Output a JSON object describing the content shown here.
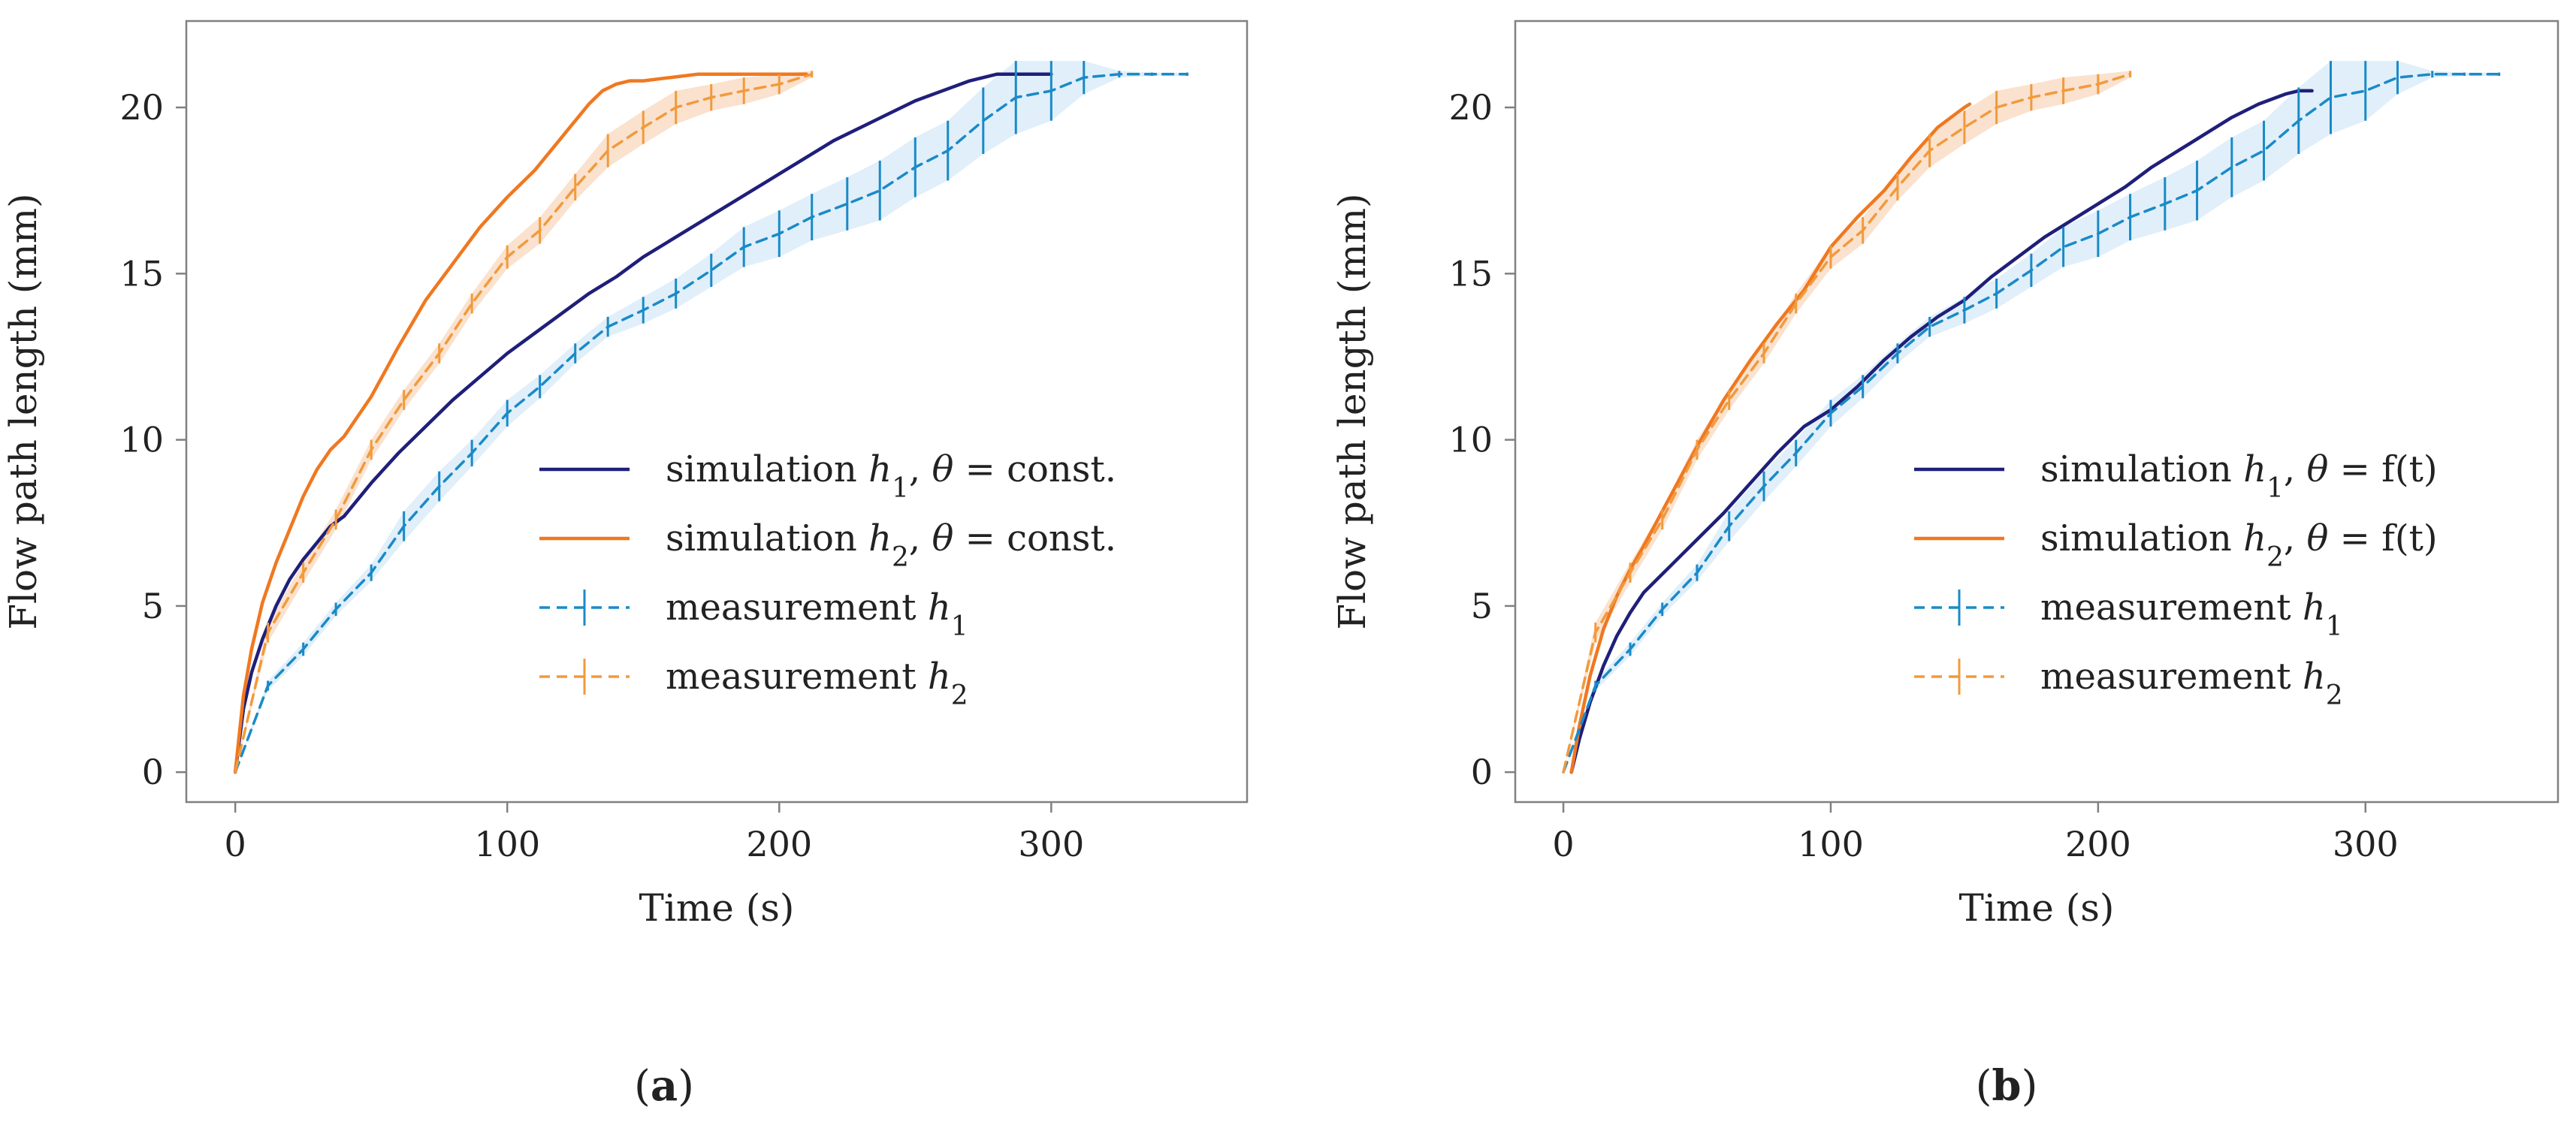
{
  "colors": {
    "sim_h1": "#1f1f7a",
    "sim_h2": "#f07820",
    "meas_h1": "#1a8ac8",
    "meas_h2": "#f29a3c",
    "band_h1": "#d6e9f7",
    "band_h2": "#f8d8bf",
    "axis": "#808080"
  },
  "chart_data": [
    {
      "type": "line",
      "panel_open": "(",
      "panel_letter": "a",
      "panel_close": ")",
      "xlabel": "Time (s)",
      "ylabel": "Flow path length (mm)",
      "xlim": [
        -18,
        372
      ],
      "ylim": [
        -0.9,
        22.6
      ],
      "xticks": [
        0,
        100,
        200,
        300
      ],
      "yticks": [
        0,
        5,
        10,
        15,
        20
      ],
      "legend_position": "right-center",
      "legend": [
        {
          "pre": "simulation ",
          "sym": "h",
          "sub": "1",
          "post": ", ",
          "sym2": "θ",
          "rest": " = const."
        },
        {
          "pre": "simulation ",
          "sym": "h",
          "sub": "2",
          "post": ", ",
          "sym2": "θ",
          "rest": " = const."
        },
        {
          "pre": "measurement ",
          "sym": "h",
          "sub": "1",
          "post": "",
          "sym2": "",
          "rest": ""
        },
        {
          "pre": "measurement ",
          "sym": "h",
          "sub": "2",
          "post": "",
          "sym2": "",
          "rest": ""
        }
      ],
      "series": [
        {
          "style": "sim_h1",
          "x": [
            0,
            3,
            6,
            10,
            15,
            20,
            25,
            30,
            35,
            40,
            50,
            60,
            70,
            80,
            90,
            100,
            110,
            120,
            130,
            140,
            150,
            160,
            170,
            180,
            190,
            200,
            210,
            220,
            230,
            240,
            250,
            260,
            270,
            280,
            290,
            300
          ],
          "y": [
            0,
            1.9,
            3.0,
            4.0,
            5.0,
            5.8,
            6.4,
            6.9,
            7.4,
            7.7,
            8.7,
            9.6,
            10.4,
            11.2,
            11.9,
            12.6,
            13.2,
            13.8,
            14.4,
            14.9,
            15.5,
            16.0,
            16.5,
            17.0,
            17.5,
            18.0,
            18.5,
            19.0,
            19.4,
            19.8,
            20.2,
            20.5,
            20.8,
            21.0,
            21.0,
            21.0
          ]
        },
        {
          "style": "sim_h2",
          "x": [
            0,
            3,
            6,
            10,
            15,
            20,
            25,
            30,
            35,
            40,
            45,
            50,
            60,
            70,
            80,
            90,
            100,
            110,
            120,
            125,
            130,
            135,
            140,
            145,
            150,
            160,
            170,
            180,
            190,
            200,
            210
          ],
          "y": [
            0,
            2.3,
            3.7,
            5.1,
            6.3,
            7.3,
            8.3,
            9.1,
            9.7,
            10.1,
            10.7,
            11.3,
            12.8,
            14.2,
            15.3,
            16.4,
            17.3,
            18.1,
            19.1,
            19.6,
            20.1,
            20.5,
            20.7,
            20.8,
            20.8,
            20.9,
            21.0,
            21.0,
            21.0,
            21.0,
            21.0
          ]
        },
        {
          "style": "meas_h1",
          "x": [
            0,
            12,
            25,
            37,
            50,
            62,
            75,
            87,
            100,
            112,
            125,
            137,
            150,
            162,
            175,
            187,
            200,
            212,
            225,
            237,
            250,
            262,
            275,
            287,
            300,
            312,
            325,
            337,
            350
          ],
          "y": [
            0,
            2.6,
            3.7,
            4.9,
            6.0,
            7.4,
            8.6,
            9.6,
            10.8,
            11.6,
            12.6,
            13.4,
            13.9,
            14.4,
            15.1,
            15.8,
            16.2,
            16.7,
            17.1,
            17.5,
            18.2,
            18.7,
            19.6,
            20.3,
            20.5,
            20.9,
            21.0,
            21.0,
            21.0
          ],
          "err": [
            0,
            0.15,
            0.2,
            0.2,
            0.25,
            0.45,
            0.45,
            0.4,
            0.4,
            0.35,
            0.3,
            0.3,
            0.4,
            0.45,
            0.5,
            0.6,
            0.7,
            0.7,
            0.8,
            0.9,
            0.9,
            0.9,
            1.0,
            1.1,
            0.9,
            0.5,
            0.1,
            0.05,
            0.05
          ]
        },
        {
          "style": "meas_h2",
          "x": [
            0,
            12,
            25,
            37,
            50,
            62,
            75,
            87,
            100,
            112,
            125,
            137,
            150,
            162,
            175,
            187,
            200,
            212
          ],
          "y": [
            0,
            4.2,
            6.0,
            7.6,
            9.7,
            11.2,
            12.6,
            14.1,
            15.5,
            16.3,
            17.6,
            18.7,
            19.4,
            20.0,
            20.3,
            20.5,
            20.7,
            21.0
          ],
          "err": [
            0,
            0.3,
            0.3,
            0.3,
            0.3,
            0.3,
            0.3,
            0.3,
            0.35,
            0.4,
            0.4,
            0.5,
            0.5,
            0.5,
            0.4,
            0.4,
            0.3,
            0.1
          ]
        }
      ]
    },
    {
      "type": "line",
      "panel_open": "(",
      "panel_letter": "b",
      "panel_close": ")",
      "xlabel": "Time (s)",
      "ylabel": "Flow path length (mm)",
      "xlim": [
        -18,
        372
      ],
      "ylim": [
        -0.9,
        22.6
      ],
      "xticks": [
        0,
        100,
        200,
        300
      ],
      "yticks": [
        0,
        5,
        10,
        15,
        20
      ],
      "legend_position": "right-center",
      "legend": [
        {
          "pre": "simulation ",
          "sym": "h",
          "sub": "1",
          "post": ", ",
          "sym2": "θ",
          "rest": " = f(t)"
        },
        {
          "pre": "simulation ",
          "sym": "h",
          "sub": "2",
          "post": ", ",
          "sym2": "θ",
          "rest": " = f(t)"
        },
        {
          "pre": "measurement ",
          "sym": "h",
          "sub": "1",
          "post": "",
          "sym2": "",
          "rest": ""
        },
        {
          "pre": "measurement ",
          "sym": "h",
          "sub": "2",
          "post": "",
          "sym2": "",
          "rest": ""
        }
      ],
      "series": [
        {
          "style": "sim_h1",
          "x": [
            3,
            6,
            10,
            15,
            20,
            25,
            30,
            40,
            50,
            60,
            70,
            80,
            90,
            100,
            110,
            120,
            130,
            140,
            150,
            160,
            170,
            180,
            190,
            200,
            210,
            220,
            230,
            240,
            250,
            260,
            270,
            275,
            280
          ],
          "y": [
            0,
            1.0,
            2.1,
            3.2,
            4.1,
            4.8,
            5.4,
            6.2,
            7.0,
            7.8,
            8.7,
            9.6,
            10.4,
            10.9,
            11.6,
            12.4,
            13.1,
            13.7,
            14.2,
            14.9,
            15.5,
            16.1,
            16.6,
            17.1,
            17.6,
            18.2,
            18.7,
            19.2,
            19.7,
            20.1,
            20.4,
            20.5,
            20.5
          ]
        },
        {
          "style": "sim_h2",
          "x": [
            3,
            6,
            10,
            15,
            20,
            25,
            30,
            40,
            50,
            60,
            70,
            80,
            90,
            100,
            110,
            120,
            130,
            140,
            145,
            150,
            152
          ],
          "y": [
            0,
            1.4,
            2.9,
            4.3,
            5.3,
            6.1,
            6.8,
            8.3,
            9.8,
            11.2,
            12.4,
            13.5,
            14.5,
            15.8,
            16.7,
            17.5,
            18.5,
            19.4,
            19.7,
            20.0,
            20.1
          ]
        },
        {
          "style": "meas_h1",
          "x": [
            0,
            12,
            25,
            37,
            50,
            62,
            75,
            87,
            100,
            112,
            125,
            137,
            150,
            162,
            175,
            187,
            200,
            212,
            225,
            237,
            250,
            262,
            275,
            287,
            300,
            312,
            325,
            337,
            350
          ],
          "y": [
            0,
            2.6,
            3.7,
            4.9,
            6.0,
            7.4,
            8.6,
            9.6,
            10.8,
            11.6,
            12.6,
            13.4,
            13.9,
            14.4,
            15.1,
            15.8,
            16.2,
            16.7,
            17.1,
            17.5,
            18.2,
            18.7,
            19.6,
            20.3,
            20.5,
            20.9,
            21.0,
            21.0,
            21.0
          ],
          "err": [
            0,
            0.15,
            0.2,
            0.2,
            0.25,
            0.45,
            0.45,
            0.4,
            0.4,
            0.35,
            0.3,
            0.3,
            0.4,
            0.45,
            0.5,
            0.6,
            0.7,
            0.7,
            0.8,
            0.9,
            0.9,
            0.9,
            1.0,
            1.1,
            0.9,
            0.5,
            0.1,
            0.05,
            0.05
          ]
        },
        {
          "style": "meas_h2",
          "x": [
            0,
            12,
            25,
            37,
            50,
            62,
            75,
            87,
            100,
            112,
            125,
            137,
            150,
            162,
            175,
            187,
            200,
            212
          ],
          "y": [
            0,
            4.2,
            6.0,
            7.6,
            9.7,
            11.2,
            12.6,
            14.1,
            15.5,
            16.3,
            17.6,
            18.7,
            19.4,
            20.0,
            20.3,
            20.5,
            20.7,
            21.0
          ],
          "err": [
            0,
            0.3,
            0.3,
            0.3,
            0.3,
            0.3,
            0.3,
            0.3,
            0.35,
            0.4,
            0.4,
            0.5,
            0.5,
            0.5,
            0.4,
            0.4,
            0.3,
            0.1
          ]
        }
      ]
    }
  ]
}
